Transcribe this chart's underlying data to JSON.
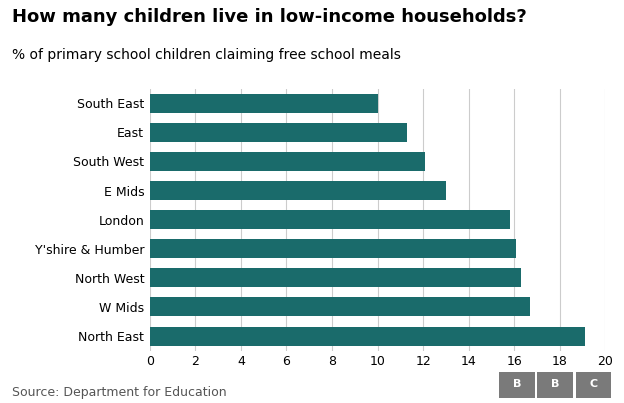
{
  "title": "How many children live in low-income households?",
  "subtitle": "% of primary school children claiming free school meals",
  "categories": [
    "North East",
    "W Mids",
    "North West",
    "Y'shire & Humber",
    "London",
    "E Mids",
    "South West",
    "East",
    "South East"
  ],
  "values": [
    19.1,
    16.7,
    16.3,
    16.1,
    15.8,
    13.0,
    12.1,
    11.3,
    10.0
  ],
  "bar_color": "#1a6b6b",
  "background_color": "#ffffff",
  "xlim": [
    0,
    20
  ],
  "xticks": [
    0,
    2,
    4,
    6,
    8,
    10,
    12,
    14,
    16,
    18,
    20
  ],
  "source_text": "Source: Department for Education",
  "source_fontsize": 9,
  "title_fontsize": 13,
  "subtitle_fontsize": 10,
  "tick_fontsize": 9,
  "label_fontsize": 9,
  "bbc_color": "#7a7a7a"
}
